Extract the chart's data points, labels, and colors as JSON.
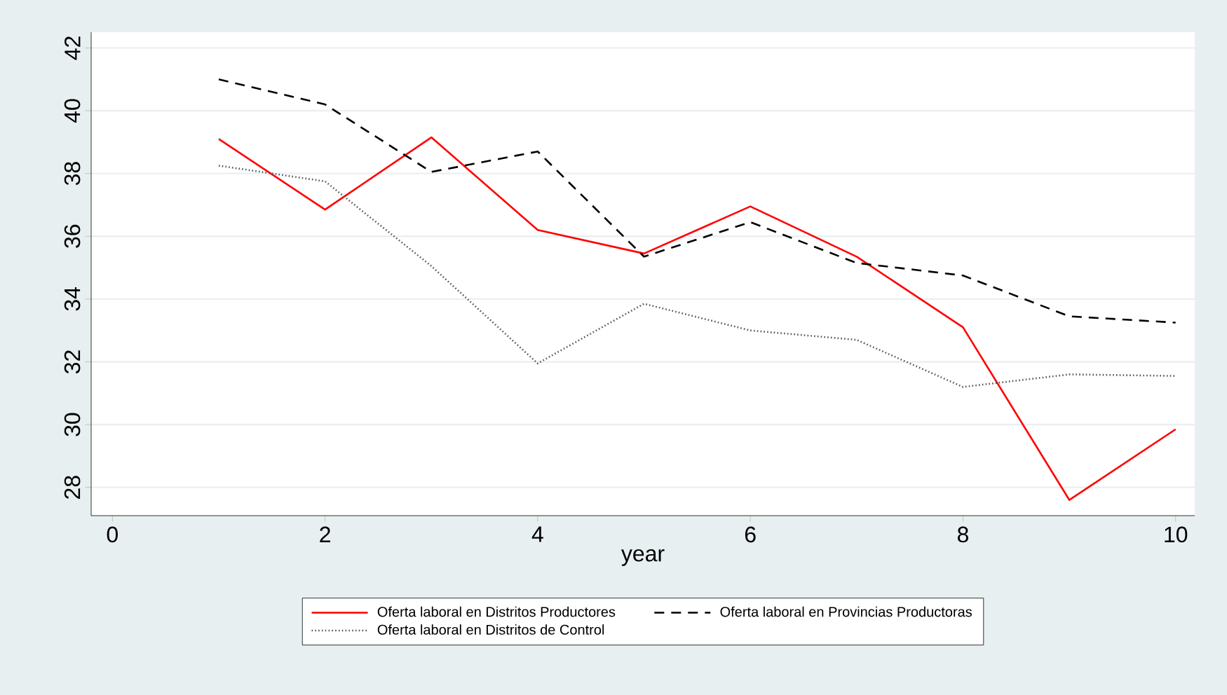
{
  "chart_data": {
    "type": "line",
    "xlabel": "year",
    "x": [
      1,
      2,
      3,
      4,
      5,
      6,
      7,
      8,
      9,
      10
    ],
    "series": [
      {
        "name": "Oferta laboral en Distritos Productores",
        "color": "#ff0000",
        "line_style": "solid",
        "values": [
          39.1,
          36.85,
          39.15,
          36.2,
          35.45,
          36.95,
          35.35,
          33.1,
          27.6,
          29.85
        ]
      },
      {
        "name": "Oferta laboral en Provincias Productoras",
        "color": "#000000",
        "line_style": "dashed",
        "values": [
          41.0,
          40.2,
          38.05,
          38.7,
          35.35,
          36.45,
          35.15,
          34.75,
          33.45,
          33.25
        ]
      },
      {
        "name": "Oferta laboral en Distritos de Control",
        "color": "#555555",
        "line_style": "dotted",
        "values": [
          38.25,
          37.75,
          35.05,
          31.95,
          33.85,
          33.0,
          32.7,
          31.2,
          31.6,
          31.55
        ]
      }
    ],
    "xlim": [
      -0.2,
      10.18
    ],
    "ylim": [
      27.1,
      42.5
    ],
    "xticks": [
      0,
      2,
      4,
      6,
      8,
      10
    ],
    "yticks": [
      28,
      30,
      32,
      34,
      36,
      38,
      40,
      42
    ],
    "grid": "y",
    "legend": "bottom",
    "marker": "none"
  }
}
